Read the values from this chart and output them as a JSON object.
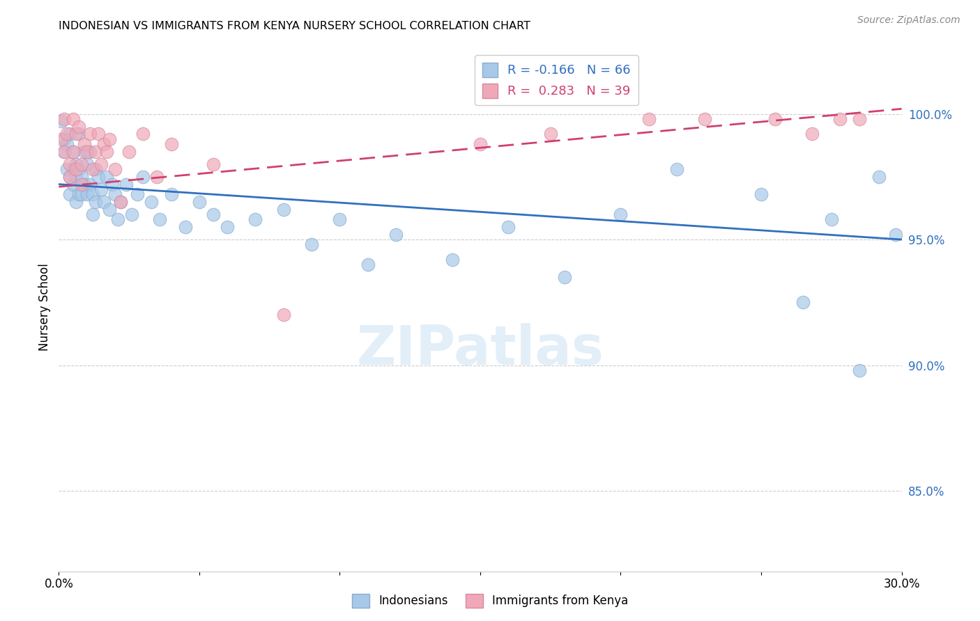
{
  "title": "INDONESIAN VS IMMIGRANTS FROM KENYA NURSERY SCHOOL CORRELATION CHART",
  "source": "Source: ZipAtlas.com",
  "ylabel": "Nursery School",
  "xmin": 0.0,
  "xmax": 0.3,
  "ymin": 0.818,
  "ymax": 1.028,
  "yticks": [
    0.85,
    0.9,
    0.95,
    1.0
  ],
  "ytick_labels": [
    "85.0%",
    "90.0%",
    "95.0%",
    "100.0%"
  ],
  "xticks": [
    0.0,
    0.05,
    0.1,
    0.15,
    0.2,
    0.25,
    0.3
  ],
  "xtick_labels": [
    "0.0%",
    "",
    "",
    "",
    "",
    "",
    "30.0%"
  ],
  "blue_R": -0.166,
  "blue_N": 66,
  "pink_R": 0.283,
  "pink_N": 39,
  "blue_color": "#a8c8e8",
  "pink_color": "#f0a8b8",
  "blue_edge_color": "#88acd0",
  "pink_edge_color": "#d888a0",
  "blue_line_color": "#3070c0",
  "pink_line_color": "#d04070",
  "blue_label": "Indonesians",
  "pink_label": "Immigrants from Kenya",
  "watermark": "ZIPatlas",
  "blue_line_x0": 0.0,
  "blue_line_y0": 0.972,
  "blue_line_x1": 0.3,
  "blue_line_y1": 0.95,
  "pink_line_x0": 0.0,
  "pink_line_y0": 0.971,
  "pink_line_x1": 0.3,
  "pink_line_y1": 1.002,
  "blue_x": [
    0.001,
    0.002,
    0.002,
    0.003,
    0.003,
    0.004,
    0.004,
    0.004,
    0.005,
    0.005,
    0.005,
    0.006,
    0.006,
    0.006,
    0.007,
    0.007,
    0.007,
    0.008,
    0.008,
    0.009,
    0.009,
    0.01,
    0.01,
    0.011,
    0.011,
    0.012,
    0.012,
    0.013,
    0.013,
    0.014,
    0.015,
    0.016,
    0.017,
    0.018,
    0.019,
    0.02,
    0.021,
    0.022,
    0.024,
    0.026,
    0.028,
    0.03,
    0.033,
    0.036,
    0.04,
    0.045,
    0.05,
    0.055,
    0.06,
    0.07,
    0.08,
    0.09,
    0.1,
    0.11,
    0.12,
    0.14,
    0.16,
    0.18,
    0.2,
    0.22,
    0.25,
    0.265,
    0.275,
    0.285,
    0.292,
    0.298
  ],
  "blue_y": [
    0.997,
    0.99,
    0.985,
    0.988,
    0.978,
    0.992,
    0.975,
    0.968,
    0.985,
    0.978,
    0.972,
    0.98,
    0.975,
    0.965,
    0.992,
    0.978,
    0.968,
    0.975,
    0.968,
    0.985,
    0.972,
    0.98,
    0.968,
    0.985,
    0.972,
    0.968,
    0.96,
    0.978,
    0.965,
    0.975,
    0.97,
    0.965,
    0.975,
    0.962,
    0.972,
    0.968,
    0.958,
    0.965,
    0.972,
    0.96,
    0.968,
    0.975,
    0.965,
    0.958,
    0.968,
    0.955,
    0.965,
    0.96,
    0.955,
    0.958,
    0.962,
    0.948,
    0.958,
    0.94,
    0.952,
    0.942,
    0.955,
    0.935,
    0.96,
    0.978,
    0.968,
    0.925,
    0.958,
    0.898,
    0.975,
    0.952
  ],
  "pink_x": [
    0.001,
    0.002,
    0.002,
    0.003,
    0.004,
    0.004,
    0.005,
    0.005,
    0.006,
    0.006,
    0.007,
    0.008,
    0.008,
    0.009,
    0.01,
    0.011,
    0.012,
    0.013,
    0.014,
    0.015,
    0.016,
    0.017,
    0.018,
    0.02,
    0.022,
    0.025,
    0.03,
    0.035,
    0.04,
    0.055,
    0.08,
    0.15,
    0.175,
    0.21,
    0.23,
    0.255,
    0.268,
    0.278,
    0.285
  ],
  "pink_y": [
    0.99,
    0.998,
    0.985,
    0.992,
    0.98,
    0.975,
    0.998,
    0.985,
    0.992,
    0.978,
    0.995,
    0.98,
    0.972,
    0.988,
    0.985,
    0.992,
    0.978,
    0.985,
    0.992,
    0.98,
    0.988,
    0.985,
    0.99,
    0.978,
    0.965,
    0.985,
    0.992,
    0.975,
    0.988,
    0.98,
    0.92,
    0.988,
    0.992,
    0.998,
    0.998,
    0.998,
    0.992,
    0.998,
    0.998
  ]
}
